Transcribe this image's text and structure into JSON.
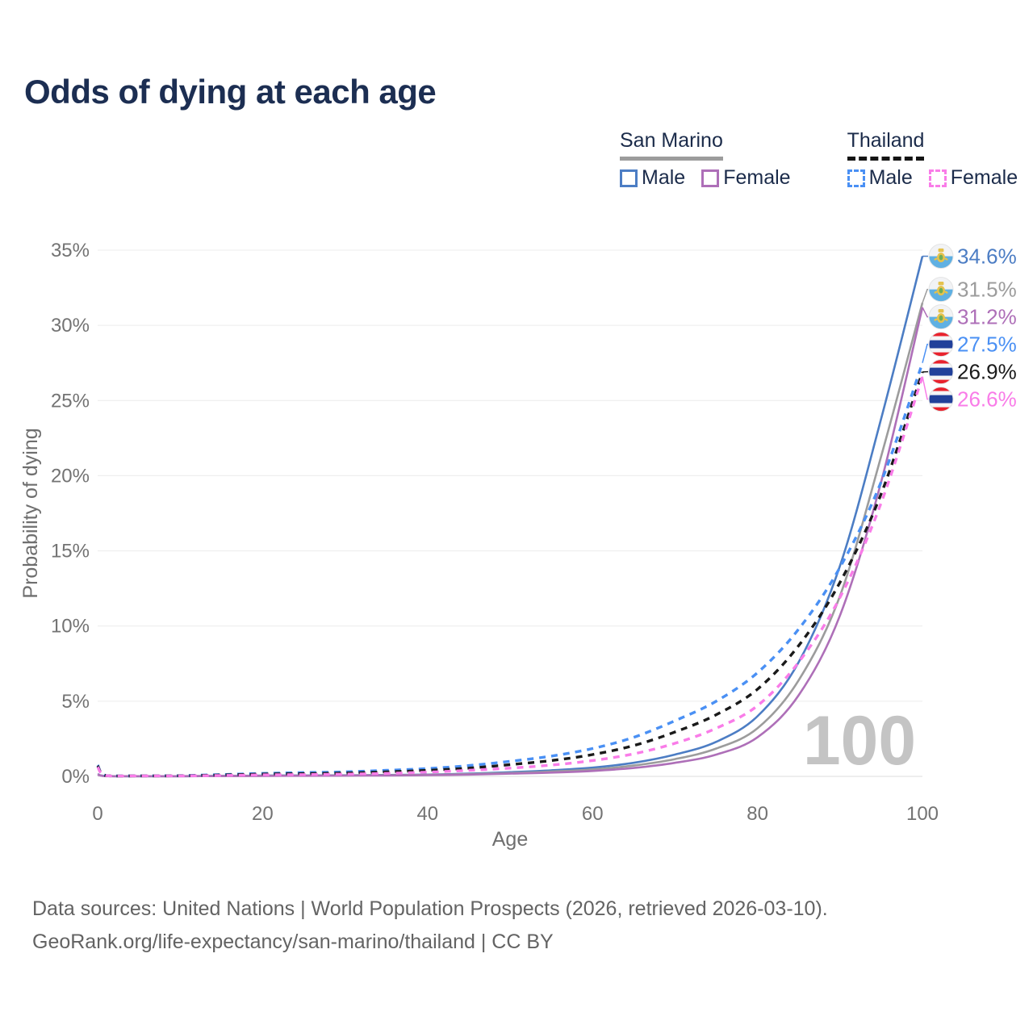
{
  "title": "Odds of dying at each age",
  "legend": {
    "groups": [
      {
        "country": "San Marino",
        "line_style": "solid",
        "underline_color": "#9c9c9c",
        "items": [
          {
            "label": "Male",
            "color": "#4c7dc4",
            "dashed": false
          },
          {
            "label": "Female",
            "color": "#ae6fb8",
            "dashed": false
          }
        ]
      },
      {
        "country": "Thailand",
        "line_style": "dashed",
        "underline_color": "#141414",
        "items": [
          {
            "label": "Male",
            "color": "#4a90f4",
            "dashed": true
          },
          {
            "label": "Female",
            "color": "#f97ce8",
            "dashed": true
          }
        ]
      }
    ]
  },
  "watermark": "100",
  "footer": {
    "line1": "Data sources: United Nations | World Population Prospects (2026, retrieved 2026-03-10).",
    "line2": "GeoRank.org/life-expectancy/san-marino/thailand | CC BY"
  },
  "chart_data": {
    "type": "line",
    "title": "Odds of dying at each age",
    "xlabel": "Age",
    "ylabel": "Probability of dying",
    "xlim": [
      0,
      100
    ],
    "ylim": [
      0,
      35
    ],
    "grid": true,
    "x_tick_labels": [
      "0",
      "20",
      "40",
      "60",
      "80",
      "100"
    ],
    "x_ticks": [
      0,
      20,
      40,
      60,
      80,
      100
    ],
    "y_tick_labels": [
      "0%",
      "5%",
      "10%",
      "15%",
      "20%",
      "25%",
      "30%",
      "35%"
    ],
    "y_ticks": [
      0,
      5,
      10,
      15,
      20,
      25,
      30,
      35
    ],
    "x": [
      0,
      1,
      5,
      10,
      15,
      20,
      25,
      30,
      35,
      40,
      45,
      50,
      55,
      60,
      65,
      70,
      75,
      80,
      85,
      90,
      95,
      100
    ],
    "series": [
      {
        "id": "sm-male",
        "country": "San Marino",
        "group": "Male",
        "color": "#4c7dc4",
        "dashed": false,
        "flag": "san-marino",
        "end_label": "34.6%",
        "end_value": 34.6,
        "values": [
          0.15,
          0.02,
          0.01,
          0.01,
          0.03,
          0.05,
          0.06,
          0.07,
          0.09,
          0.12,
          0.18,
          0.28,
          0.4,
          0.58,
          0.9,
          1.45,
          2.3,
          4.0,
          7.6,
          14.0,
          23.8,
          34.6
        ]
      },
      {
        "id": "sm-all",
        "country": "San Marino",
        "group": "All",
        "color": "#9c9c9c",
        "dashed": false,
        "flag": "san-marino",
        "end_label": "31.5%",
        "end_value": 31.5,
        "values": [
          0.13,
          0.02,
          0.01,
          0.01,
          0.02,
          0.04,
          0.05,
          0.06,
          0.08,
          0.1,
          0.15,
          0.22,
          0.32,
          0.46,
          0.72,
          1.15,
          1.85,
          3.2,
          6.4,
          12.0,
          21.3,
          31.5
        ]
      },
      {
        "id": "sm-female",
        "country": "San Marino",
        "group": "Female",
        "color": "#ae6fb8",
        "dashed": false,
        "flag": "san-marino",
        "end_label": "31.2%",
        "end_value": 31.2,
        "values": [
          0.12,
          0.01,
          0.01,
          0.01,
          0.02,
          0.03,
          0.04,
          0.05,
          0.06,
          0.08,
          0.12,
          0.18,
          0.25,
          0.36,
          0.56,
          0.9,
          1.45,
          2.6,
          5.4,
          10.7,
          19.6,
          31.2
        ]
      },
      {
        "id": "th-male",
        "country": "Thailand",
        "group": "Male",
        "color": "#4a90f4",
        "dashed": true,
        "flag": "thailand",
        "end_label": "27.5%",
        "end_value": 27.5,
        "values": [
          0.75,
          0.06,
          0.04,
          0.05,
          0.12,
          0.2,
          0.25,
          0.3,
          0.4,
          0.52,
          0.72,
          1.0,
          1.35,
          1.85,
          2.6,
          3.7,
          5.0,
          6.9,
          9.8,
          13.9,
          19.6,
          27.5
        ]
      },
      {
        "id": "th-all",
        "country": "Thailand",
        "group": "All",
        "color": "#1a1a1a",
        "dashed": true,
        "flag": "thailand",
        "end_label": "26.9%",
        "end_value": 26.9,
        "values": [
          0.7,
          0.05,
          0.03,
          0.04,
          0.09,
          0.15,
          0.18,
          0.22,
          0.3,
          0.4,
          0.55,
          0.78,
          1.05,
          1.45,
          2.05,
          2.95,
          4.1,
          5.8,
          8.7,
          12.9,
          18.8,
          26.9
        ]
      },
      {
        "id": "th-female",
        "country": "Thailand",
        "group": "Female",
        "color": "#f97ce8",
        "dashed": true,
        "flag": "thailand",
        "end_label": "26.6%",
        "end_value": 26.6,
        "values": [
          0.62,
          0.05,
          0.03,
          0.03,
          0.06,
          0.1,
          0.12,
          0.15,
          0.2,
          0.28,
          0.4,
          0.55,
          0.75,
          1.05,
          1.5,
          2.2,
          3.2,
          4.7,
          7.6,
          11.9,
          18.2,
          26.6
        ]
      }
    ],
    "colors": {
      "grid": "#ececec",
      "axis_text": "#737373",
      "watermark": "#c4c4c4",
      "title": "#1c2e52",
      "san_marino_flag_blue": "#5fb0e3",
      "thailand_flag_blue": "#21409a",
      "thailand_flag_red": "#e8222d"
    }
  }
}
